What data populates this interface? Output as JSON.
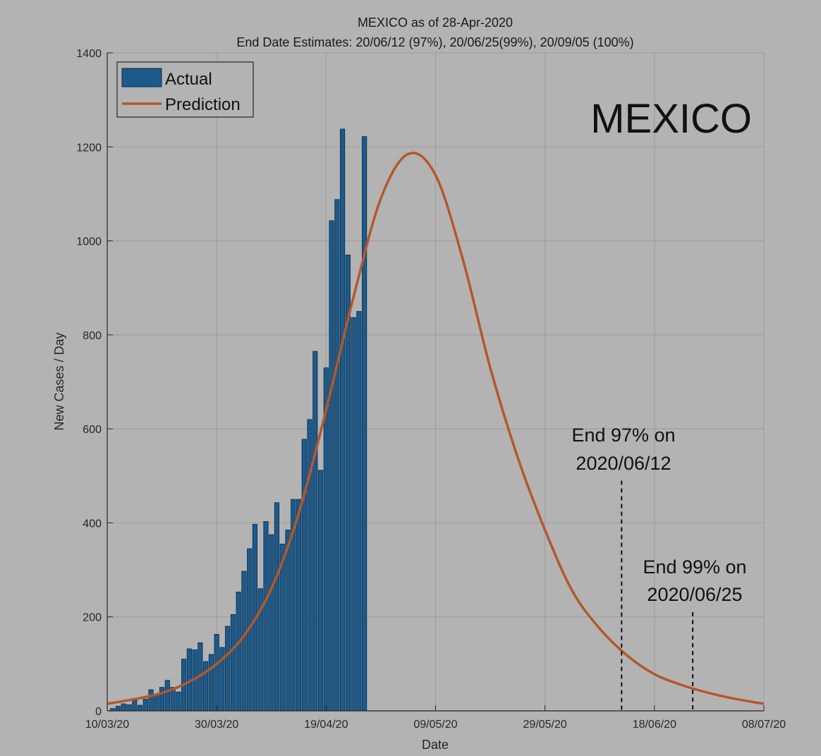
{
  "chart_data": {
    "type": "bar",
    "title": "MEXICO as of 28-Apr-2020",
    "subtitle": "End Date Estimates: 20/06/12 (97%), 20/06/25(99%), 20/09/05 (100%)",
    "xlabel": "Date",
    "ylabel": "New Cases / Day",
    "ylim": [
      0,
      1400
    ],
    "yticks": [
      0,
      200,
      400,
      600,
      800,
      1000,
      1200,
      1400
    ],
    "x_start": "2020-03-10",
    "x_end": "2020-07-08",
    "xticks": [
      {
        "date": "2020-03-10",
        "label": "10/03/20"
      },
      {
        "date": "2020-03-30",
        "label": "30/03/20"
      },
      {
        "date": "2020-04-19",
        "label": "19/04/20"
      },
      {
        "date": "2020-05-09",
        "label": "09/05/20"
      },
      {
        "date": "2020-05-29",
        "label": "29/05/20"
      },
      {
        "date": "2020-06-18",
        "label": "18/06/20"
      },
      {
        "date": "2020-07-08",
        "label": "08/07/20"
      }
    ],
    "grid": true,
    "legend_position": "top-left",
    "big_label": "MEXICO",
    "colors": {
      "actual": "#1c5a8c",
      "prediction": "#b5572a",
      "background": "#b3b3b3"
    },
    "series": [
      {
        "name": "Actual",
        "type": "bar",
        "x": [
          "2020-03-11",
          "2020-03-12",
          "2020-03-13",
          "2020-03-14",
          "2020-03-15",
          "2020-03-16",
          "2020-03-17",
          "2020-03-18",
          "2020-03-19",
          "2020-03-20",
          "2020-03-21",
          "2020-03-22",
          "2020-03-23",
          "2020-03-24",
          "2020-03-25",
          "2020-03-26",
          "2020-03-27",
          "2020-03-28",
          "2020-03-29",
          "2020-03-30",
          "2020-03-31",
          "2020-04-01",
          "2020-04-02",
          "2020-04-03",
          "2020-04-04",
          "2020-04-05",
          "2020-04-06",
          "2020-04-07",
          "2020-04-08",
          "2020-04-09",
          "2020-04-10",
          "2020-04-11",
          "2020-04-12",
          "2020-04-13",
          "2020-04-14",
          "2020-04-15",
          "2020-04-16",
          "2020-04-17",
          "2020-04-18",
          "2020-04-19",
          "2020-04-20",
          "2020-04-21",
          "2020-04-22",
          "2020-04-23",
          "2020-04-24",
          "2020-04-25",
          "2020-04-26",
          "2020-04-27",
          "2020-04-28"
        ],
        "values": [
          5,
          10,
          15,
          13,
          25,
          12,
          25,
          45,
          35,
          50,
          65,
          50,
          40,
          110,
          132,
          130,
          145,
          105,
          120,
          163,
          135,
          180,
          205,
          253,
          297,
          345,
          397,
          260,
          403,
          375,
          443,
          355,
          385,
          450,
          450,
          578,
          620,
          765,
          512,
          730,
          1043,
          1088,
          1238,
          970,
          837,
          850,
          1222,
          0,
          0
        ]
      },
      {
        "name": "Prediction",
        "type": "line",
        "x": [
          "2020-03-10",
          "2020-03-15",
          "2020-03-20",
          "2020-03-25",
          "2020-03-30",
          "2020-04-04",
          "2020-04-09",
          "2020-04-14",
          "2020-04-19",
          "2020-04-24",
          "2020-04-29",
          "2020-05-04",
          "2020-05-09",
          "2020-05-14",
          "2020-05-19",
          "2020-05-24",
          "2020-05-29",
          "2020-06-03",
          "2020-06-08",
          "2020-06-13",
          "2020-06-18",
          "2020-06-23",
          "2020-06-28",
          "2020-07-03",
          "2020-07-08"
        ],
        "values": [
          15,
          25,
          38,
          62,
          100,
          160,
          260,
          420,
          640,
          880,
          1090,
          1185,
          1140,
          960,
          730,
          540,
          385,
          255,
          175,
          118,
          78,
          55,
          38,
          25,
          15
        ]
      }
    ],
    "annotations": [
      {
        "date": "2020-06-12",
        "line_top": 490,
        "lines": [
          "End 97% on",
          "2020/06/12"
        ]
      },
      {
        "date": "2020-06-25",
        "line_top": 210,
        "lines": [
          "End 99% on",
          "2020/06/25"
        ]
      }
    ]
  }
}
